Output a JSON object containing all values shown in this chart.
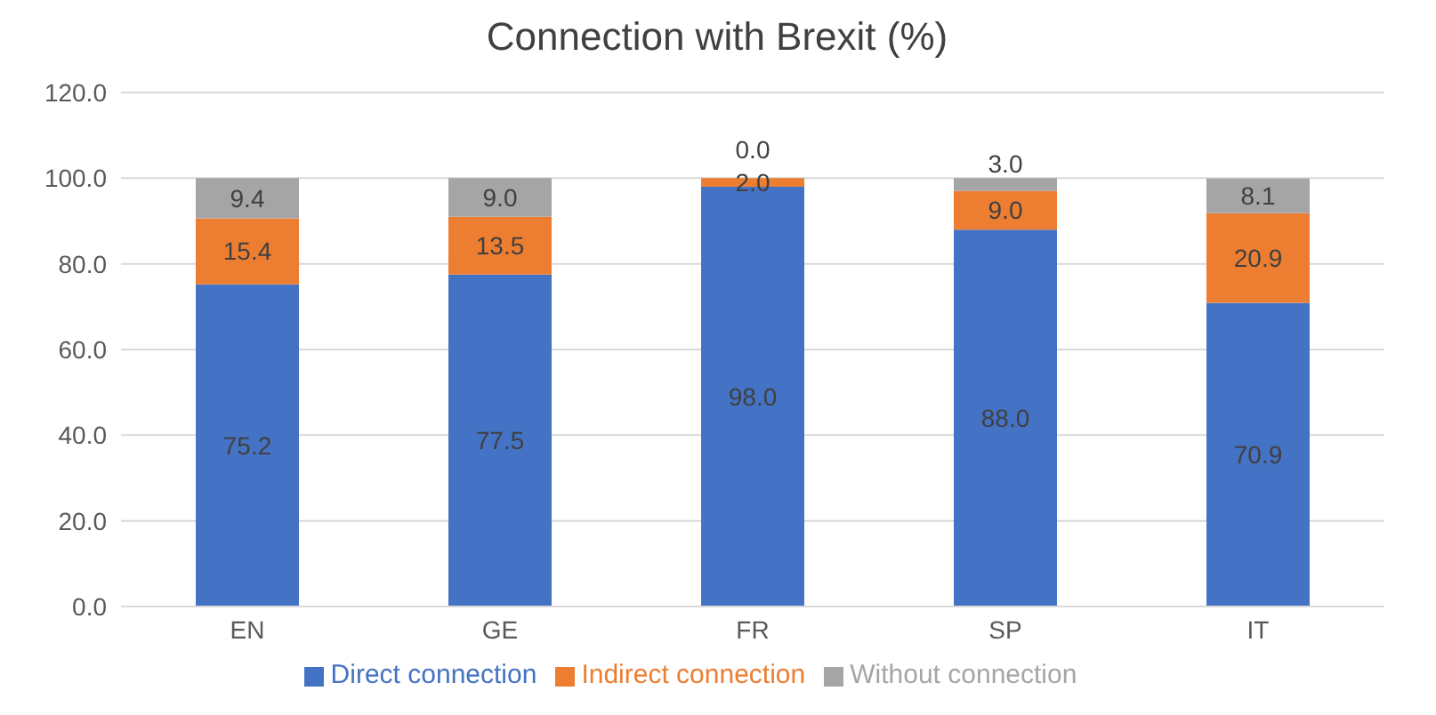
{
  "chart_data": {
    "type": "bar",
    "title": "Connection with Brexit (%)",
    "categories": [
      "EN",
      "GE",
      "FR",
      "SP",
      "IT"
    ],
    "stacked": true,
    "series": [
      {
        "name": "Direct connection",
        "color": "#4472c4",
        "values": [
          75.2,
          77.5,
          98.0,
          88.0,
          70.9
        ],
        "value_labels": [
          "75.2",
          "77.5",
          "98.0",
          "88.0",
          "70.9"
        ]
      },
      {
        "name": "Indirect connection",
        "color": "#ed7d31",
        "values": [
          15.4,
          13.5,
          2.0,
          9.0,
          20.9
        ],
        "value_labels": [
          "15.4",
          "13.5",
          "2.0",
          "9.0",
          "20.9"
        ]
      },
      {
        "name": "Without connection",
        "color": "#a5a5a5",
        "values": [
          9.4,
          9.0,
          0.0,
          3.0,
          8.1
        ],
        "value_labels": [
          "9.4",
          "9.0",
          "0.0",
          "3.0",
          "8.1"
        ]
      }
    ],
    "ylim": [
      0,
      120
    ],
    "yticks": [
      {
        "value": 0,
        "label": "0.0"
      },
      {
        "value": 20,
        "label": "20.0"
      },
      {
        "value": 40,
        "label": "40.0"
      },
      {
        "value": 60,
        "label": "60.0"
      },
      {
        "value": 80,
        "label": "80.0"
      },
      {
        "value": 100,
        "label": "100.0"
      },
      {
        "value": 120,
        "label": "120.0"
      }
    ],
    "grid": "y",
    "legend": "bottom"
  }
}
